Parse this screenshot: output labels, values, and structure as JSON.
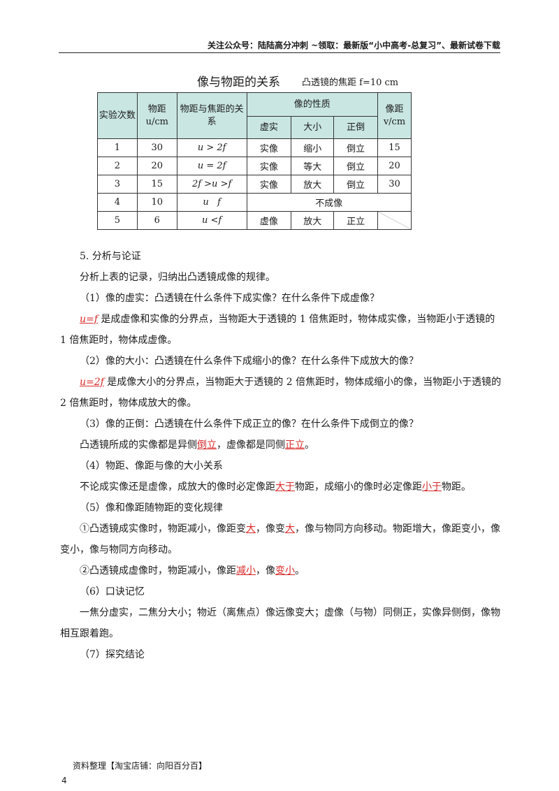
{
  "header": {
    "text": "关注公众号：陆陆高分冲刺  ~领取：最新版“小中高考-总复习”、最新试卷下载"
  },
  "caption": {
    "title": "像与物距的关系",
    "note": "凸透镜的焦距 f=10 cm"
  },
  "table": {
    "headers": {
      "trial": "实验次数",
      "object_distance": "物距 u/cm",
      "relation": "物距与焦距的关系",
      "image_nature": "像的性质",
      "real_virtual": "虚实",
      "size": "大小",
      "orientation": "正倒",
      "image_distance": "像距 v/cm"
    },
    "rows": [
      {
        "n": "1",
        "u": "30",
        "rel": "u > 2f",
        "rv": "实像",
        "size": "缩小",
        "ori": "倒立",
        "v": "15"
      },
      {
        "n": "2",
        "u": "20",
        "rel": "u = 2f",
        "rv": "实像",
        "size": "等大",
        "ori": "倒立",
        "v": "20"
      },
      {
        "n": "3",
        "u": "15",
        "rel": "2f >u >f",
        "rv": "实像",
        "size": "放大",
        "ori": "倒立",
        "v": "30"
      },
      {
        "n": "4",
        "u": "10",
        "rel": "u   f",
        "merged": "不成像"
      },
      {
        "n": "5",
        "u": "6",
        "rel": "u <f",
        "rv": "虚像",
        "size": "放大",
        "ori": "正立"
      }
    ]
  },
  "content": {
    "section_title": "5. 分析与论证",
    "intro": "分析上表的记录，归纳出凸透镜成像的规律。",
    "q1": "（1）像的虚实：凸透镜在什么条件下成实像？在什么条件下成虚像？",
    "a1_hl": "u=f",
    "a1_rest": " 是成虚像和实像的分界点，当物距大于透镜的 1 倍焦距时，物体成实像，当物距小于透镜的 1 倍焦距时，物体成虚像。",
    "q2": "（2）像的大小：凸透镜在什么条件下成缩小的像？在什么条件下成放大的像？",
    "a2_hl": "u=2f",
    "a2_rest": " 是成像大小的分界点，当物距大于透镜的 2 倍焦距时，物体成缩小的像，当物距小于透镜的 2 倍焦距时，物体成放大的像。",
    "q3": "（3）像的正倒：凸透镜在什么条件下成正立的像？在什么条件下成倒立的像？",
    "a3_a": "凸透镜所成的实像都是异侧",
    "a3_hl1": "倒立",
    "a3_b": "，虚像都是同侧",
    "a3_hl2": "正立",
    "a3_c": "。",
    "q4": "（4）物距、像距与像的大小关系",
    "a4_a": "不论成实像还是虚像，成放大的像时必定像距",
    "a4_hl1": "大于",
    "a4_b": "物距，成缩小的像时必定像距",
    "a4_hl2": "小于",
    "a4_c": "物距。",
    "q5": "（5）像和像距随物距的变化规律",
    "a5a_a": "①凸透镜成实像时，物距减小，像距变",
    "a5a_hl1": "大",
    "a5a_b": "，像变",
    "a5a_hl2": "大",
    "a5a_c": "，像与物同方向移动。物距增大，像距变小，像变小，像与物同方向移动。",
    "a5b_a": "②凸透镜成虚像时，物距减小，像距",
    "a5b_hl1": "减小",
    "a5b_b": "，像",
    "a5b_hl2": "变小",
    "a5b_c": "。",
    "q6": "（6）口诀记忆",
    "a6": "一焦分虚实，二焦分大小；物近（离焦点）像远像变大；虚像（与物）同侧正，实像异侧倒，像物相互跟着跑。",
    "q7": "（7）探究结论"
  },
  "footer": {
    "shop": "资料整理【淘宝店铺：向阳百分百】",
    "page": "4"
  }
}
